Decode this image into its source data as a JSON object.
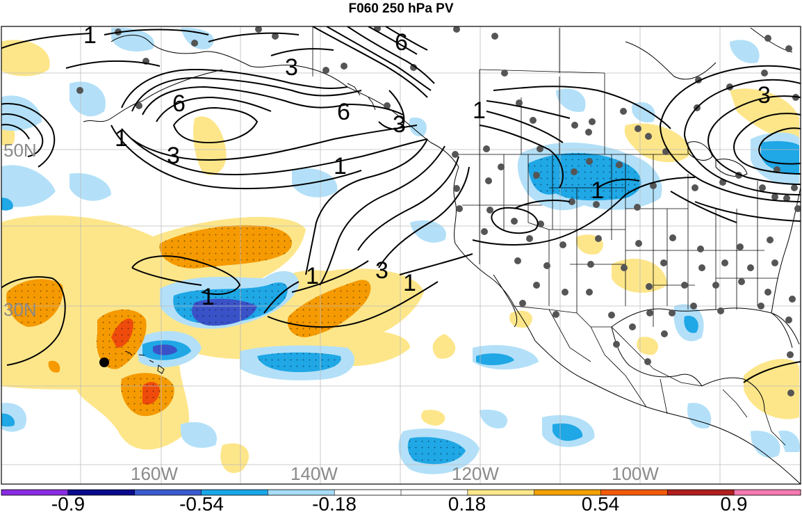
{
  "title": "F060 250 hPa PV",
  "longitude_labels": [
    "160W",
    "140W",
    "120W",
    "100W"
  ],
  "latitude_labels": [
    "50N",
    "30N"
  ],
  "contour_labels": [
    "1",
    "1",
    "1",
    "1",
    "1",
    "1",
    "1",
    "3",
    "3",
    "3",
    "3",
    "3",
    "6",
    "6",
    "6"
  ],
  "colorbar": {
    "tick_labels": [
      "-0.9",
      "-0.54",
      "-0.18",
      "0.18",
      "0.54",
      "0.9"
    ],
    "colors": [
      "#8a2be2",
      "#0a0a8c",
      "#3a5bd0",
      "#19a7e8",
      "#a6dcf7",
      "#ffffff",
      "#ffffff",
      "#ffe88a",
      "#f5a100",
      "#f25a0a",
      "#b01e1e",
      "#f47ab0"
    ]
  },
  "colors": {
    "weak_negative": "#b3e0f8",
    "moderate_negative": "#1fa7e6",
    "strong_negative": "#3a52c8",
    "weak_positive": "#fde68a",
    "moderate_positive": "#f59a00",
    "strong_positive": "#ee4b0c",
    "station_dots": "#555555"
  }
}
